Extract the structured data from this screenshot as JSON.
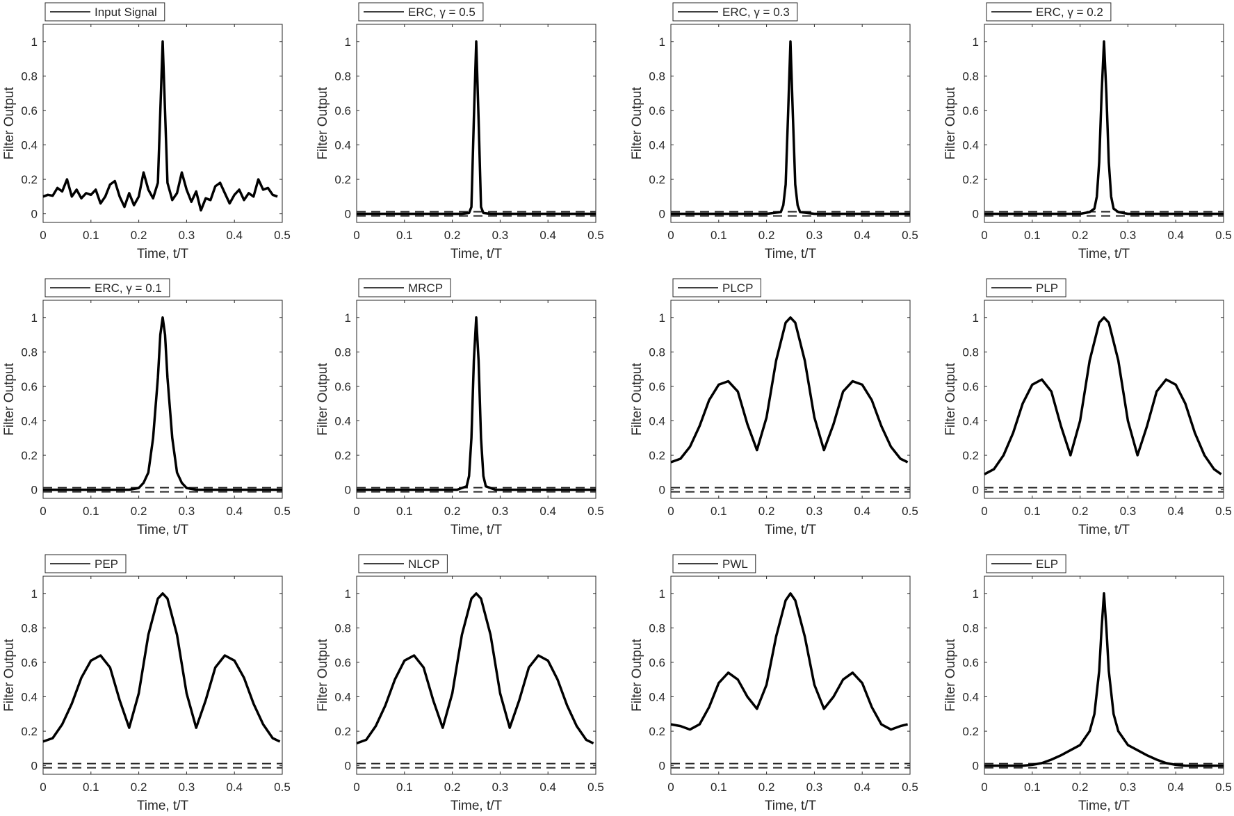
{
  "figure": {
    "layout": "3x4 grid of line plots"
  },
  "chart_data": [
    {
      "type": "line",
      "legend": "Input Signal",
      "xlabel": "Time, t/T",
      "ylabel": "Filter Output",
      "xlim": [
        0,
        0.5
      ],
      "ylim": [
        -0.05,
        1.1
      ],
      "xticks": [
        "0",
        "0.1",
        "0.2",
        "0.3",
        "0.4",
        "0.5"
      ],
      "yticks": [
        "0",
        "0.2",
        "0.4",
        "0.6",
        "0.8",
        "1"
      ],
      "dashed_bounds": [],
      "x": [
        0,
        0.01,
        0.02,
        0.03,
        0.04,
        0.05,
        0.06,
        0.07,
        0.08,
        0.09,
        0.1,
        0.11,
        0.12,
        0.13,
        0.14,
        0.15,
        0.16,
        0.17,
        0.18,
        0.19,
        0.2,
        0.21,
        0.22,
        0.23,
        0.24,
        0.25,
        0.26,
        0.27,
        0.28,
        0.29,
        0.3,
        0.31,
        0.32,
        0.33,
        0.34,
        0.35,
        0.36,
        0.37,
        0.38,
        0.39,
        0.4,
        0.41,
        0.42,
        0.43,
        0.44,
        0.45,
        0.46,
        0.47,
        0.48,
        0.49
      ],
      "y": [
        0.1,
        0.11,
        0.105,
        0.15,
        0.13,
        0.2,
        0.1,
        0.14,
        0.09,
        0.12,
        0.11,
        0.14,
        0.06,
        0.1,
        0.17,
        0.19,
        0.1,
        0.04,
        0.12,
        0.05,
        0.1,
        0.24,
        0.14,
        0.09,
        0.18,
        1.0,
        0.18,
        0.08,
        0.12,
        0.24,
        0.14,
        0.07,
        0.13,
        0.02,
        0.09,
        0.08,
        0.16,
        0.18,
        0.12,
        0.06,
        0.11,
        0.14,
        0.08,
        0.12,
        0.1,
        0.2,
        0.14,
        0.15,
        0.11,
        0.1
      ]
    },
    {
      "type": "line",
      "legend": "ERC,  γ = 0.5",
      "xlabel": "Time, t/T",
      "ylabel": "Filter Output",
      "xlim": [
        0,
        0.5
      ],
      "ylim": [
        -0.05,
        1.1
      ],
      "xticks": [
        "0",
        "0.1",
        "0.2",
        "0.3",
        "0.4",
        "0.5"
      ],
      "yticks": [
        "0",
        "0.2",
        "0.4",
        "0.6",
        "0.8",
        "1"
      ],
      "dashed_bounds": [
        -0.012,
        0.012
      ],
      "x": [
        0,
        0.22,
        0.235,
        0.24,
        0.245,
        0.25,
        0.255,
        0.26,
        0.265,
        0.28,
        0.5
      ],
      "y": [
        0,
        0,
        0.005,
        0.04,
        0.55,
        1.0,
        0.55,
        0.04,
        0.005,
        0,
        0
      ]
    },
    {
      "type": "line",
      "legend": "ERC,  γ = 0.3",
      "xlabel": "Time, t/T",
      "ylabel": "Filter Output",
      "xlim": [
        0,
        0.5
      ],
      "ylim": [
        -0.05,
        1.1
      ],
      "xticks": [
        "0",
        "0.1",
        "0.2",
        "0.3",
        "0.4",
        "0.5"
      ],
      "yticks": [
        "0",
        "0.2",
        "0.4",
        "0.6",
        "0.8",
        "1"
      ],
      "dashed_bounds": [
        -0.012,
        0.012
      ],
      "x": [
        0,
        0.2,
        0.23,
        0.235,
        0.24,
        0.245,
        0.25,
        0.255,
        0.26,
        0.265,
        0.27,
        0.3,
        0.5
      ],
      "y": [
        0,
        0,
        0.01,
        0.05,
        0.17,
        0.58,
        1.0,
        0.58,
        0.17,
        0.05,
        0.01,
        0,
        0
      ]
    },
    {
      "type": "line",
      "legend": "ERC,  γ = 0.2",
      "xlabel": "Time, t/T",
      "ylabel": "Filter Output",
      "xlim": [
        0,
        0.5
      ],
      "ylim": [
        -0.05,
        1.1
      ],
      "xticks": [
        "0",
        "0.1",
        "0.2",
        "0.3",
        "0.4",
        "0.5"
      ],
      "yticks": [
        "0",
        "0.2",
        "0.4",
        "0.6",
        "0.8",
        "1"
      ],
      "dashed_bounds": [
        -0.012,
        0.012
      ],
      "x": [
        0,
        0.2,
        0.22,
        0.23,
        0.235,
        0.24,
        0.245,
        0.25,
        0.255,
        0.26,
        0.265,
        0.27,
        0.28,
        0.3,
        0.5
      ],
      "y": [
        0,
        0,
        0.01,
        0.03,
        0.1,
        0.3,
        0.7,
        1.0,
        0.7,
        0.3,
        0.1,
        0.03,
        0.01,
        0,
        0
      ]
    },
    {
      "type": "line",
      "legend": "ERC,  γ = 0.1",
      "xlabel": "Time, t/T",
      "ylabel": "Filter Output",
      "xlim": [
        0,
        0.5
      ],
      "ylim": [
        -0.05,
        1.1
      ],
      "xticks": [
        "0",
        "0.1",
        "0.2",
        "0.3",
        "0.4",
        "0.5"
      ],
      "yticks": [
        "0",
        "0.2",
        "0.4",
        "0.6",
        "0.8",
        "1"
      ],
      "dashed_bounds": [
        -0.012,
        0.012
      ],
      "x": [
        0,
        0.18,
        0.2,
        0.21,
        0.22,
        0.23,
        0.24,
        0.245,
        0.25,
        0.255,
        0.26,
        0.27,
        0.28,
        0.29,
        0.3,
        0.32,
        0.5
      ],
      "y": [
        0,
        0,
        0.01,
        0.04,
        0.1,
        0.3,
        0.65,
        0.9,
        1.0,
        0.9,
        0.65,
        0.3,
        0.1,
        0.04,
        0.01,
        0,
        0
      ]
    },
    {
      "type": "line",
      "legend": "MRCP",
      "xlabel": "Time, t/T",
      "ylabel": "Filter Output",
      "xlim": [
        0,
        0.5
      ],
      "ylim": [
        -0.05,
        1.1
      ],
      "xticks": [
        "0",
        "0.1",
        "0.2",
        "0.3",
        "0.4",
        "0.5"
      ],
      "yticks": [
        "0",
        "0.2",
        "0.4",
        "0.6",
        "0.8",
        "1"
      ],
      "dashed_bounds": [
        -0.012,
        0.012
      ],
      "x": [
        0,
        0.21,
        0.23,
        0.235,
        0.24,
        0.245,
        0.25,
        0.255,
        0.26,
        0.265,
        0.27,
        0.29,
        0.5
      ],
      "y": [
        0,
        0,
        0.02,
        0.08,
        0.3,
        0.75,
        1.0,
        0.75,
        0.3,
        0.08,
        0.02,
        0,
        0
      ]
    },
    {
      "type": "line",
      "legend": "PLCP",
      "xlabel": "Time, t/T",
      "ylabel": "Filter Output",
      "xlim": [
        0,
        0.5
      ],
      "ylim": [
        -0.05,
        1.1
      ],
      "xticks": [
        "0",
        "0.1",
        "0.2",
        "0.3",
        "0.4",
        "0.5"
      ],
      "yticks": [
        "0",
        "0.2",
        "0.4",
        "0.6",
        "0.8",
        "1"
      ],
      "dashed_bounds": [
        -0.012,
        0.012
      ],
      "x": [
        0,
        0.02,
        0.04,
        0.06,
        0.08,
        0.1,
        0.12,
        0.14,
        0.16,
        0.18,
        0.2,
        0.22,
        0.24,
        0.25,
        0.26,
        0.28,
        0.3,
        0.32,
        0.34,
        0.36,
        0.38,
        0.4,
        0.42,
        0.44,
        0.46,
        0.48,
        0.495
      ],
      "y": [
        0.16,
        0.18,
        0.25,
        0.37,
        0.52,
        0.61,
        0.63,
        0.57,
        0.38,
        0.23,
        0.42,
        0.75,
        0.97,
        1.0,
        0.97,
        0.75,
        0.42,
        0.23,
        0.38,
        0.57,
        0.63,
        0.61,
        0.52,
        0.37,
        0.25,
        0.18,
        0.16
      ]
    },
    {
      "type": "line",
      "legend": "PLP",
      "xlabel": "Time, t/T",
      "ylabel": "Filter Output",
      "xlim": [
        0,
        0.5
      ],
      "ylim": [
        -0.05,
        1.1
      ],
      "xticks": [
        "0",
        "0.1",
        "0.2",
        "0.3",
        "0.4",
        "0.5"
      ],
      "yticks": [
        "0",
        "0.2",
        "0.4",
        "0.6",
        "0.8",
        "1"
      ],
      "dashed_bounds": [
        -0.012,
        0.012
      ],
      "x": [
        0,
        0.02,
        0.04,
        0.06,
        0.08,
        0.1,
        0.12,
        0.14,
        0.16,
        0.18,
        0.2,
        0.22,
        0.24,
        0.25,
        0.26,
        0.28,
        0.3,
        0.32,
        0.34,
        0.36,
        0.38,
        0.4,
        0.42,
        0.44,
        0.46,
        0.48,
        0.495
      ],
      "y": [
        0.09,
        0.12,
        0.2,
        0.33,
        0.5,
        0.61,
        0.64,
        0.57,
        0.37,
        0.2,
        0.4,
        0.75,
        0.97,
        1.0,
        0.97,
        0.75,
        0.4,
        0.2,
        0.37,
        0.57,
        0.64,
        0.61,
        0.5,
        0.33,
        0.2,
        0.12,
        0.09
      ]
    },
    {
      "type": "line",
      "legend": "PEP",
      "xlabel": "Time, t/T",
      "ylabel": "Filter Output",
      "xlim": [
        0,
        0.5
      ],
      "ylim": [
        -0.05,
        1.1
      ],
      "xticks": [
        "0",
        "0.1",
        "0.2",
        "0.3",
        "0.4",
        "0.5"
      ],
      "yticks": [
        "0",
        "0.2",
        "0.4",
        "0.6",
        "0.8",
        "1"
      ],
      "dashed_bounds": [
        -0.012,
        0.012
      ],
      "x": [
        0,
        0.02,
        0.04,
        0.06,
        0.08,
        0.1,
        0.12,
        0.14,
        0.16,
        0.18,
        0.2,
        0.22,
        0.24,
        0.25,
        0.26,
        0.28,
        0.3,
        0.32,
        0.34,
        0.36,
        0.38,
        0.4,
        0.42,
        0.44,
        0.46,
        0.48,
        0.495
      ],
      "y": [
        0.14,
        0.16,
        0.24,
        0.36,
        0.51,
        0.61,
        0.64,
        0.57,
        0.38,
        0.22,
        0.42,
        0.76,
        0.97,
        1.0,
        0.97,
        0.76,
        0.42,
        0.22,
        0.38,
        0.57,
        0.64,
        0.61,
        0.51,
        0.36,
        0.24,
        0.16,
        0.14
      ]
    },
    {
      "type": "line",
      "legend": "NLCP",
      "xlabel": "Time, t/T",
      "ylabel": "Filter Output",
      "xlim": [
        0,
        0.5
      ],
      "ylim": [
        -0.05,
        1.1
      ],
      "xticks": [
        "0",
        "0.1",
        "0.2",
        "0.3",
        "0.4",
        "0.5"
      ],
      "yticks": [
        "0",
        "0.2",
        "0.4",
        "0.6",
        "0.8",
        "1"
      ],
      "dashed_bounds": [
        -0.012,
        0.012
      ],
      "x": [
        0,
        0.02,
        0.04,
        0.06,
        0.08,
        0.1,
        0.12,
        0.14,
        0.16,
        0.18,
        0.2,
        0.22,
        0.24,
        0.25,
        0.26,
        0.28,
        0.3,
        0.32,
        0.34,
        0.36,
        0.38,
        0.4,
        0.42,
        0.44,
        0.46,
        0.48,
        0.495
      ],
      "y": [
        0.13,
        0.15,
        0.23,
        0.35,
        0.5,
        0.61,
        0.64,
        0.57,
        0.38,
        0.22,
        0.42,
        0.76,
        0.97,
        1.0,
        0.97,
        0.76,
        0.42,
        0.22,
        0.38,
        0.57,
        0.64,
        0.61,
        0.5,
        0.35,
        0.23,
        0.15,
        0.13
      ]
    },
    {
      "type": "line",
      "legend": "PWL",
      "xlabel": "Time, t/T",
      "ylabel": "Filter Output",
      "xlim": [
        0,
        0.5
      ],
      "ylim": [
        -0.05,
        1.1
      ],
      "xticks": [
        "0",
        "0.1",
        "0.2",
        "0.3",
        "0.4",
        "0.5"
      ],
      "yticks": [
        "0",
        "0.2",
        "0.4",
        "0.6",
        "0.8",
        "1"
      ],
      "dashed_bounds": [
        -0.012,
        0.012
      ],
      "x": [
        0,
        0.02,
        0.04,
        0.06,
        0.08,
        0.1,
        0.12,
        0.14,
        0.16,
        0.18,
        0.2,
        0.22,
        0.24,
        0.25,
        0.26,
        0.28,
        0.3,
        0.32,
        0.34,
        0.36,
        0.38,
        0.4,
        0.42,
        0.44,
        0.46,
        0.48,
        0.495
      ],
      "y": [
        0.24,
        0.23,
        0.21,
        0.24,
        0.34,
        0.48,
        0.54,
        0.5,
        0.4,
        0.33,
        0.47,
        0.75,
        0.96,
        1.0,
        0.96,
        0.75,
        0.47,
        0.33,
        0.4,
        0.5,
        0.54,
        0.48,
        0.34,
        0.24,
        0.21,
        0.23,
        0.24
      ]
    },
    {
      "type": "line",
      "legend": "ELP",
      "xlabel": "Time, t/T",
      "ylabel": "Filter Output",
      "xlim": [
        0,
        0.5
      ],
      "ylim": [
        -0.05,
        1.1
      ],
      "xticks": [
        "0",
        "0.1",
        "0.2",
        "0.3",
        "0.4",
        "0.5"
      ],
      "yticks": [
        "0",
        "0.2",
        "0.4",
        "0.6",
        "0.8",
        "1"
      ],
      "dashed_bounds": [
        -0.012,
        0.012
      ],
      "x": [
        0,
        0.08,
        0.1,
        0.12,
        0.14,
        0.16,
        0.18,
        0.2,
        0.22,
        0.23,
        0.24,
        0.245,
        0.25,
        0.255,
        0.26,
        0.27,
        0.28,
        0.3,
        0.32,
        0.34,
        0.36,
        0.38,
        0.4,
        0.42,
        0.5
      ],
      "y": [
        0,
        0,
        0.005,
        0.015,
        0.035,
        0.06,
        0.09,
        0.12,
        0.2,
        0.3,
        0.55,
        0.8,
        1.0,
        0.8,
        0.55,
        0.3,
        0.2,
        0.12,
        0.09,
        0.06,
        0.035,
        0.015,
        0.005,
        0,
        0
      ]
    }
  ]
}
